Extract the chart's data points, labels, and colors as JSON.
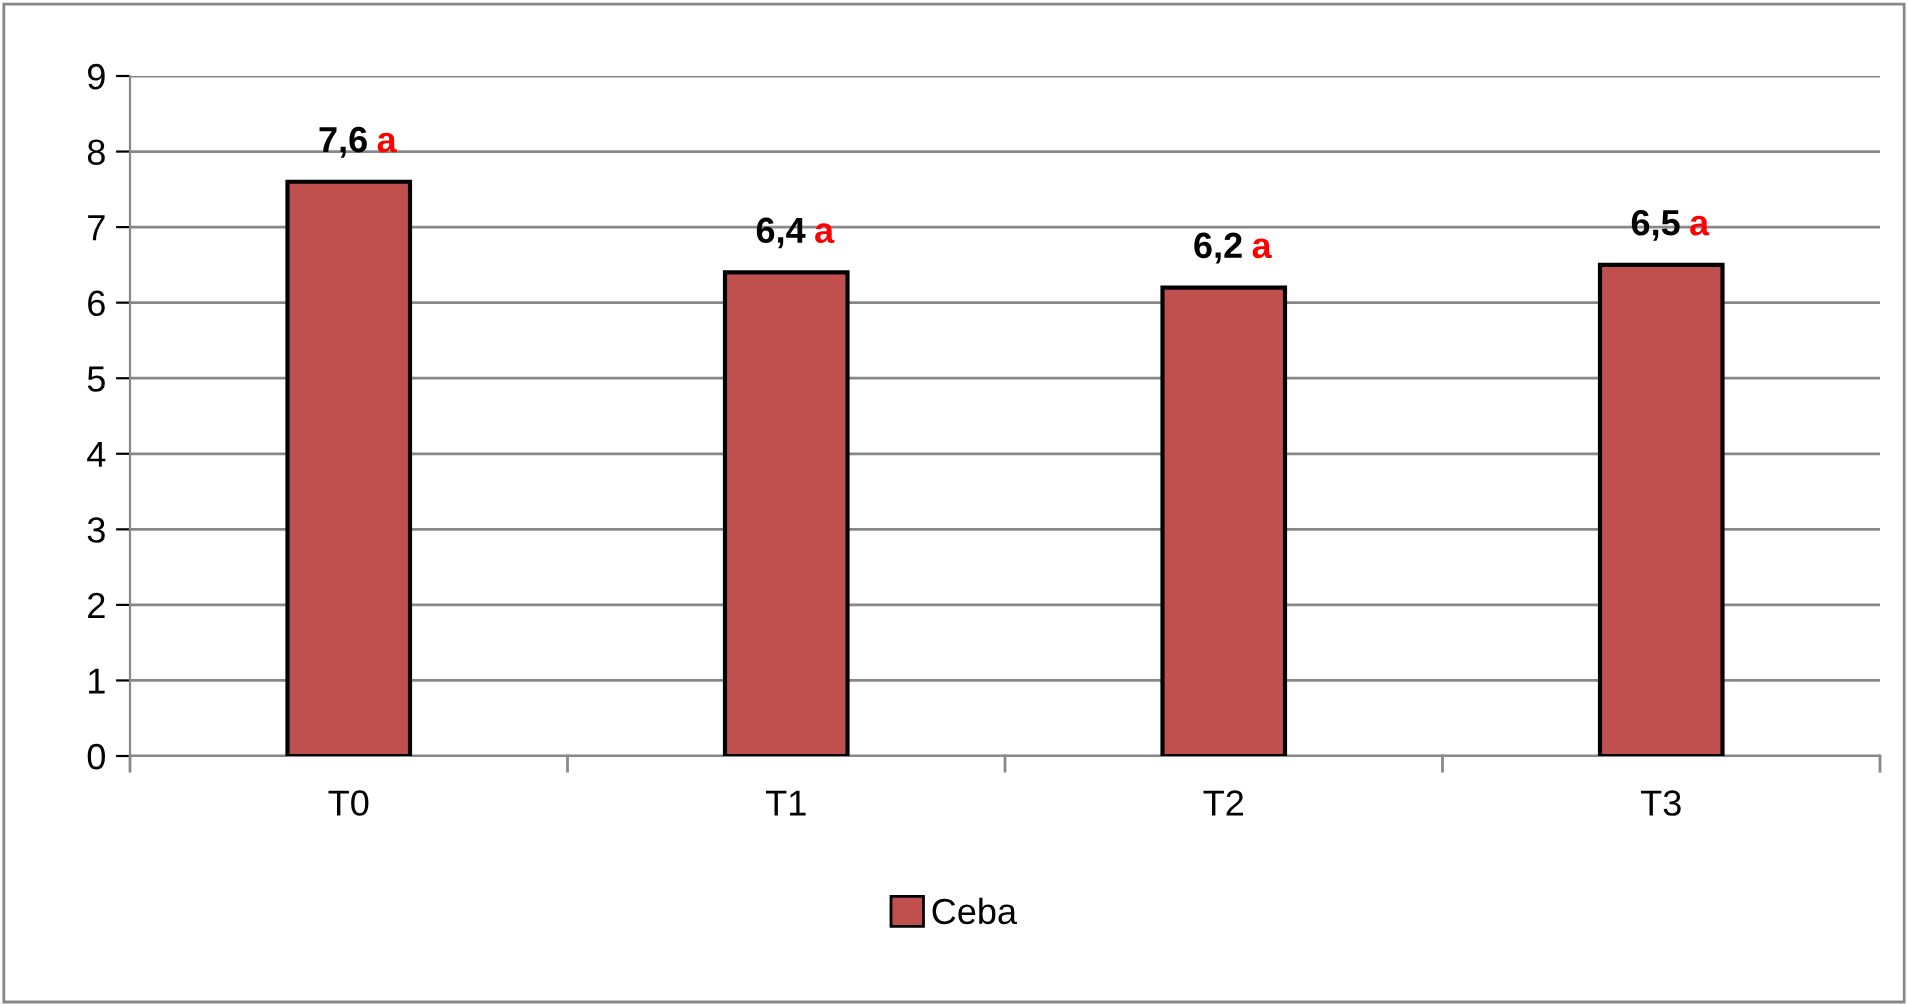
{
  "chart_data": {
    "type": "bar",
    "categories": [
      "T0",
      "T1",
      "T2",
      "T3"
    ],
    "series": [
      {
        "name": "Ceba",
        "color": "#c0504d",
        "values": [
          7.6,
          6.4,
          6.2,
          6.5
        ],
        "value_labels": [
          "7,6",
          "6,4",
          "6,2",
          "6,5"
        ]
      }
    ],
    "annotations": [
      {
        "text": "a",
        "x": "T0",
        "y": 7.6
      },
      {
        "text": "a",
        "x": "T1",
        "y": 6.4
      },
      {
        "text": "a",
        "x": "T2",
        "y": 6.2
      },
      {
        "text": "a",
        "x": "T3",
        "y": 6.5
      }
    ],
    "ylim": [
      0,
      9
    ],
    "yticks": [
      0,
      1,
      2,
      3,
      4,
      5,
      6,
      7,
      8,
      9
    ],
    "grid": "y",
    "legend": "bottom"
  }
}
